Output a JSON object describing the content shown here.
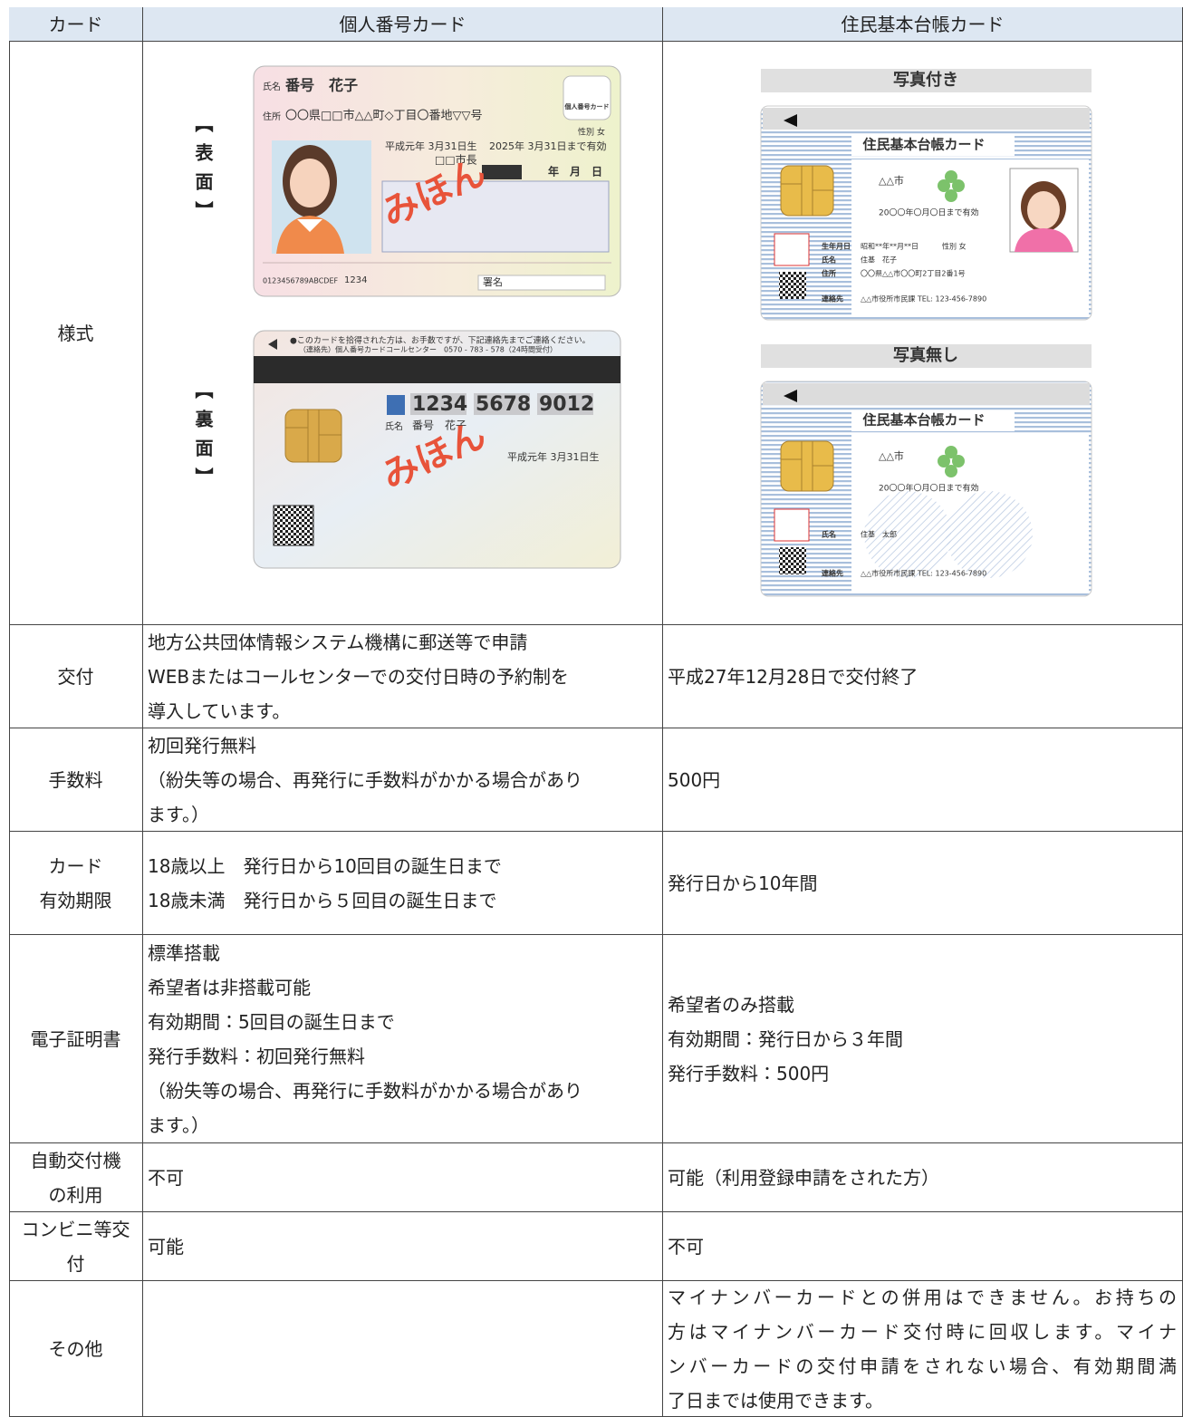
{
  "table": {
    "header": [
      "カード",
      "個人番号カード",
      "住民基本台帳カード"
    ],
    "style_row": {
      "label": "様式",
      "my_number_card": {
        "front": {
          "label": "【表面】",
          "name_label": "氏名",
          "name": "番号　花子",
          "address_label": "住所",
          "address": "〇〇県□□市△△町◇丁目〇番地▽▽号",
          "birth": "平成元年 3月31日生",
          "expiry": "2025年 3月31日まで有効",
          "gender": "性別 女",
          "mayor": "□□市長",
          "date": "年　月　日",
          "badge": "個人番号カード",
          "sample": "みほん",
          "serial": "0123456789ABCDEF",
          "code": "1234",
          "signature": "署名"
        },
        "back": {
          "label": "【裏面】",
          "notice": "●このカードを拾得された方は、お手数ですが、下記連絡先までご連絡ください。",
          "contact": "（連絡先）個人番号カードコールセンター　0570 - 783 - 578（24時間受付）",
          "number_parts": [
            "1234",
            "5678",
            "9012"
          ],
          "name_label": "氏名",
          "name": "番号　花子",
          "birth": "平成元年 3月31日生",
          "sample": "みほん"
        }
      },
      "juki_card": {
        "with_photo": {
          "caption": "写真付き",
          "title": "住民基本台帳カード",
          "city": "△△市",
          "expiry": "20〇〇年〇月〇日まで有効",
          "birth_label": "生年月日",
          "birth": "昭和**年**月**日",
          "gender": "性別 女",
          "name_label": "氏名",
          "name": "住基　花子",
          "address_label": "住所",
          "address": "〇〇県△△市〇〇町2丁目2番1号",
          "contact_label": "連絡先",
          "contact": "△△市役所市民課 TEL: 123-456-7890"
        },
        "without_photo": {
          "caption": "写真無し",
          "title": "住民基本台帳カード",
          "city": "△△市",
          "expiry": "20〇〇年〇月〇日まで有効",
          "name_label": "氏名",
          "name": "住基　太郎",
          "contact_label": "連絡先",
          "contact": "△△市役所市民課 TEL: 123-456-7890"
        }
      }
    },
    "rows": [
      {
        "label": [
          "交付"
        ],
        "my_number": [
          "地方公共団体情報システム機構に郵送等で申請",
          "WEBまたはコールセンターでの交付日時の予約制を",
          "導入しています。"
        ],
        "juki": [
          "平成27年12月28日で交付終了"
        ]
      },
      {
        "label": [
          "手数料"
        ],
        "my_number": [
          "初回発行無料",
          "（紛失等の場合、再発行に手数料がかかる場合があり",
          "ます。）"
        ],
        "juki": [
          "500円"
        ]
      },
      {
        "label": [
          "カード",
          "有効期限"
        ],
        "my_number": [
          "18歳以上　発行日から10回目の誕生日まで",
          "18歳未満　発行日から５回目の誕生日まで"
        ],
        "juki": [
          "発行日から10年間"
        ]
      },
      {
        "label": [
          "電子証明書"
        ],
        "my_number": [
          "標準搭載",
          "希望者は非搭載可能",
          "有効期間：5回目の誕生日まで",
          "発行手数料：初回発行無料",
          "（紛失等の場合、再発行に手数料がかかる場合があり",
          "ます。）"
        ],
        "juki": [
          "希望者のみ搭載",
          "有効期間：発行日から３年間",
          "発行手数料：500円"
        ]
      },
      {
        "label": [
          "自動交付機",
          "の利用"
        ],
        "my_number": [
          "不可"
        ],
        "juki": [
          "可能（利用登録申請をされた方）"
        ]
      },
      {
        "label": [
          "コンビニ等交",
          "付"
        ],
        "my_number": [
          "可能"
        ],
        "juki": [
          "不可"
        ]
      },
      {
        "label": [
          "その他"
        ],
        "my_number": [],
        "juki": [
          "マイナンバーカードとの併用はできません。お持ちの",
          "方はマイナンバーカード交付時に回収します。マイナ",
          "ンバーカードの交付申請をされない場合、有効期間満",
          "了日までは使用できます。"
        ]
      }
    ]
  }
}
